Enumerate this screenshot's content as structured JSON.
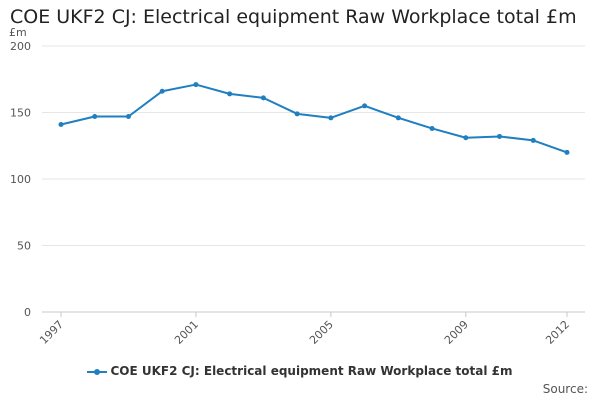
{
  "chart_data": {
    "type": "line",
    "title": "COE UKF2 CJ: Electrical equipment Raw Workplace total £m",
    "ylabel": "£m",
    "xlabel": "",
    "ylim": [
      0,
      200
    ],
    "yticks": [
      0,
      50,
      100,
      150,
      200
    ],
    "xticks": [
      "1997",
      "2001",
      "2005",
      "2009",
      "2012"
    ],
    "x": [
      1997,
      1998,
      1999,
      2000,
      2001,
      2002,
      2003,
      2004,
      2005,
      2006,
      2007,
      2008,
      2009,
      2010,
      2011,
      2012
    ],
    "series": [
      {
        "name": "COE UKF2 CJ: Electrical equipment Raw Workplace total £m",
        "color": "#1f7fbf",
        "values": [
          141,
          147,
          147,
          166,
          171,
          164,
          161,
          149,
          146,
          155,
          146,
          138,
          131,
          132,
          129,
          120
        ]
      }
    ],
    "grid": true,
    "legend_position": "bottom",
    "source_label": "Source:"
  }
}
